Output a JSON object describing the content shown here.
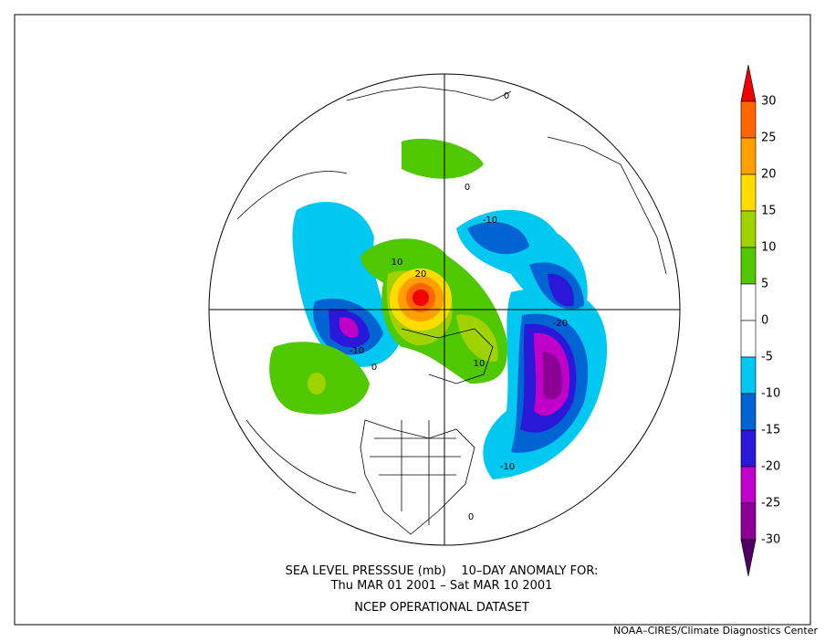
{
  "title": {
    "line1": "SEA LEVEL PRESSSUE (mb)    10–DAY ANOMALY FOR:",
    "line2": "Thu MAR 01 2001 – Sat MAR 10 2001",
    "line3": "NCEP OPERATIONAL DATASET"
  },
  "credit": "NOAA–CIRES/Climate Diagnostics Center",
  "legend": {
    "levels": [
      30,
      25,
      20,
      15,
      10,
      5,
      0,
      -5,
      -10,
      -15,
      -20,
      -25,
      -30
    ],
    "colors": [
      "#f00000",
      "#ff6400",
      "#ffa000",
      "#ffdc00",
      "#a0d200",
      "#50c800",
      "#ffffff",
      "#ffffff",
      "#00c8f0",
      "#0064d2",
      "#2a18d8",
      "#c000c8",
      "#8c0096",
      "#500064"
    ]
  },
  "contour_labels": [
    "10",
    "20",
    "-10",
    "-20",
    "-10",
    "10",
    "-10",
    "0",
    "0",
    "0",
    "0"
  ]
}
